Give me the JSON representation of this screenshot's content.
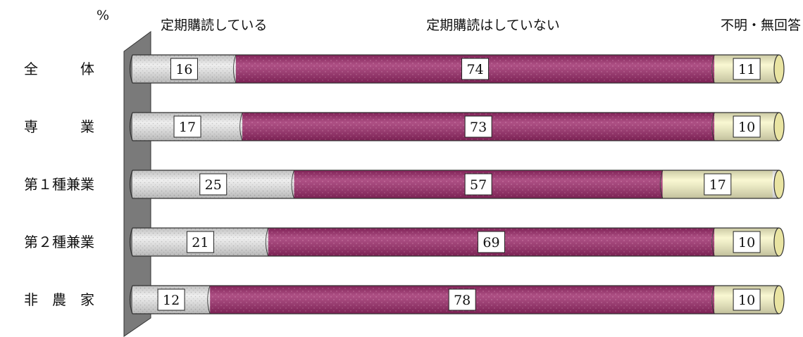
{
  "chart_data": {
    "type": "bar",
    "stacked": true,
    "orientation": "horizontal",
    "unit": "%",
    "categories": [
      "全　　　体",
      "専　　　業",
      "第１種兼業",
      "第２種兼業",
      "非　農　家"
    ],
    "series": [
      {
        "name": "定期購読している",
        "values": [
          16,
          17,
          25,
          21,
          12
        ]
      },
      {
        "name": "定期購読はしていない",
        "values": [
          74,
          73,
          57,
          69,
          78
        ]
      },
      {
        "name": "不明・無回答",
        "values": [
          11,
          10,
          17,
          10,
          10
        ]
      }
    ],
    "xlim": [
      0,
      100
    ],
    "grid": false,
    "legend": "top"
  },
  "colors": {
    "series": [
      "#e6e6e6",
      "#9c2a6a",
      "#f8f6c8"
    ],
    "wall": "#777777"
  }
}
